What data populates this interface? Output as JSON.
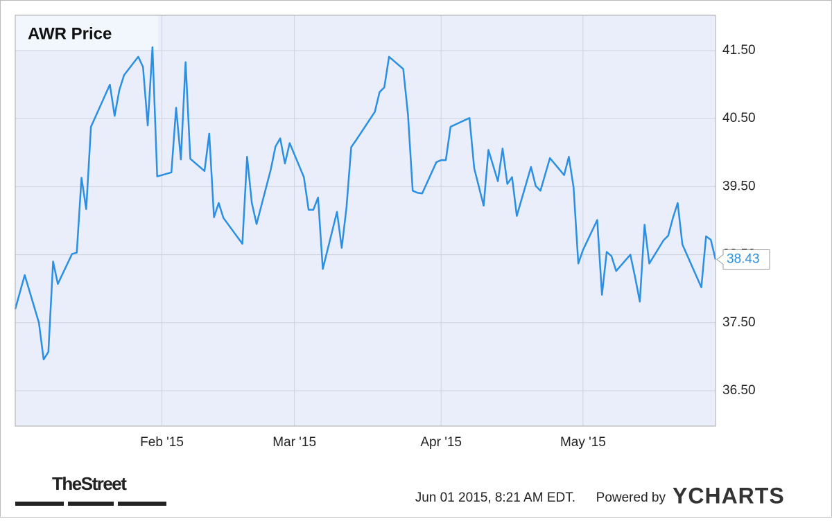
{
  "chart_data": {
    "type": "line",
    "title": "AWR Price",
    "series": [
      {
        "name": "AWR Price",
        "color": "#2b8fe3",
        "x": [
          1,
          3,
          6,
          7,
          8,
          9,
          10,
          13,
          14,
          15,
          16,
          17,
          21,
          22,
          23,
          24,
          27,
          28,
          29,
          30,
          31,
          34,
          35,
          36,
          37,
          38,
          41,
          42,
          43,
          44,
          45,
          49,
          50,
          51,
          52,
          55,
          56,
          57,
          58,
          59,
          62,
          63,
          64,
          65,
          66,
          69,
          70,
          71,
          72,
          73,
          77,
          78,
          79,
          80,
          83,
          84,
          85,
          86,
          87,
          90,
          91,
          92,
          93,
          97,
          98,
          100,
          101,
          103,
          104,
          105,
          106,
          107,
          110,
          111,
          112,
          114,
          117,
          118,
          119,
          120,
          121,
          124,
          125,
          126,
          127,
          128,
          131,
          132,
          133,
          134,
          135,
          138,
          139,
          140,
          141,
          142,
          146,
          147,
          148,
          149
        ],
        "values": [
          37.7,
          38.2,
          37.5,
          36.96,
          37.07,
          38.4,
          38.07,
          38.51,
          38.53,
          39.63,
          39.17,
          40.38,
          41.0,
          40.54,
          40.92,
          41.14,
          41.41,
          41.26,
          40.4,
          41.55,
          39.65,
          39.71,
          40.66,
          39.9,
          41.33,
          39.91,
          39.73,
          40.28,
          39.05,
          39.26,
          39.04,
          38.66,
          39.94,
          39.26,
          38.95,
          39.75,
          40.09,
          40.21,
          39.84,
          40.14,
          39.64,
          39.16,
          39.16,
          39.34,
          38.29,
          39.13,
          38.6,
          39.19,
          40.08,
          40.18,
          40.6,
          40.89,
          40.96,
          41.41,
          41.23,
          40.56,
          39.44,
          39.41,
          39.4,
          39.86,
          39.89,
          39.89,
          40.38,
          40.51,
          39.77,
          39.22,
          40.04,
          39.58,
          40.06,
          39.54,
          39.64,
          39.07,
          39.79,
          39.51,
          39.44,
          39.92,
          39.67,
          39.94,
          39.49,
          38.37,
          38.57,
          39.01,
          37.91,
          38.54,
          38.48,
          38.26,
          38.5,
          38.17,
          37.81,
          38.94,
          38.37,
          38.71,
          38.78,
          39.04,
          39.26,
          38.65,
          38.02,
          38.77,
          38.72,
          38.43
        ]
      }
    ],
    "xlim": [
      1,
      149
    ],
    "xticks": [
      {
        "value": 32,
        "label": "Feb '15"
      },
      {
        "value": 60,
        "label": "Mar '15"
      },
      {
        "value": 91,
        "label": "Apr '15"
      },
      {
        "value": 121,
        "label": "May '15"
      }
    ],
    "ylim": [
      35.98,
      42.02
    ],
    "yticks": [
      {
        "value": 36.5,
        "label": "36.50"
      },
      {
        "value": 37.5,
        "label": "37.50"
      },
      {
        "value": 38.5,
        "label": "38.50"
      },
      {
        "value": 39.5,
        "label": "39.50"
      },
      {
        "value": 40.5,
        "label": "40.50"
      },
      {
        "value": 41.5,
        "label": "41.50"
      }
    ],
    "grid": true
  },
  "footer": {
    "brand": "TheStreet",
    "timestamp": "Jun 01 2015, 8:21 AM EDT.",
    "powered_by": "Powered by",
    "provider": "YCHARTS"
  }
}
